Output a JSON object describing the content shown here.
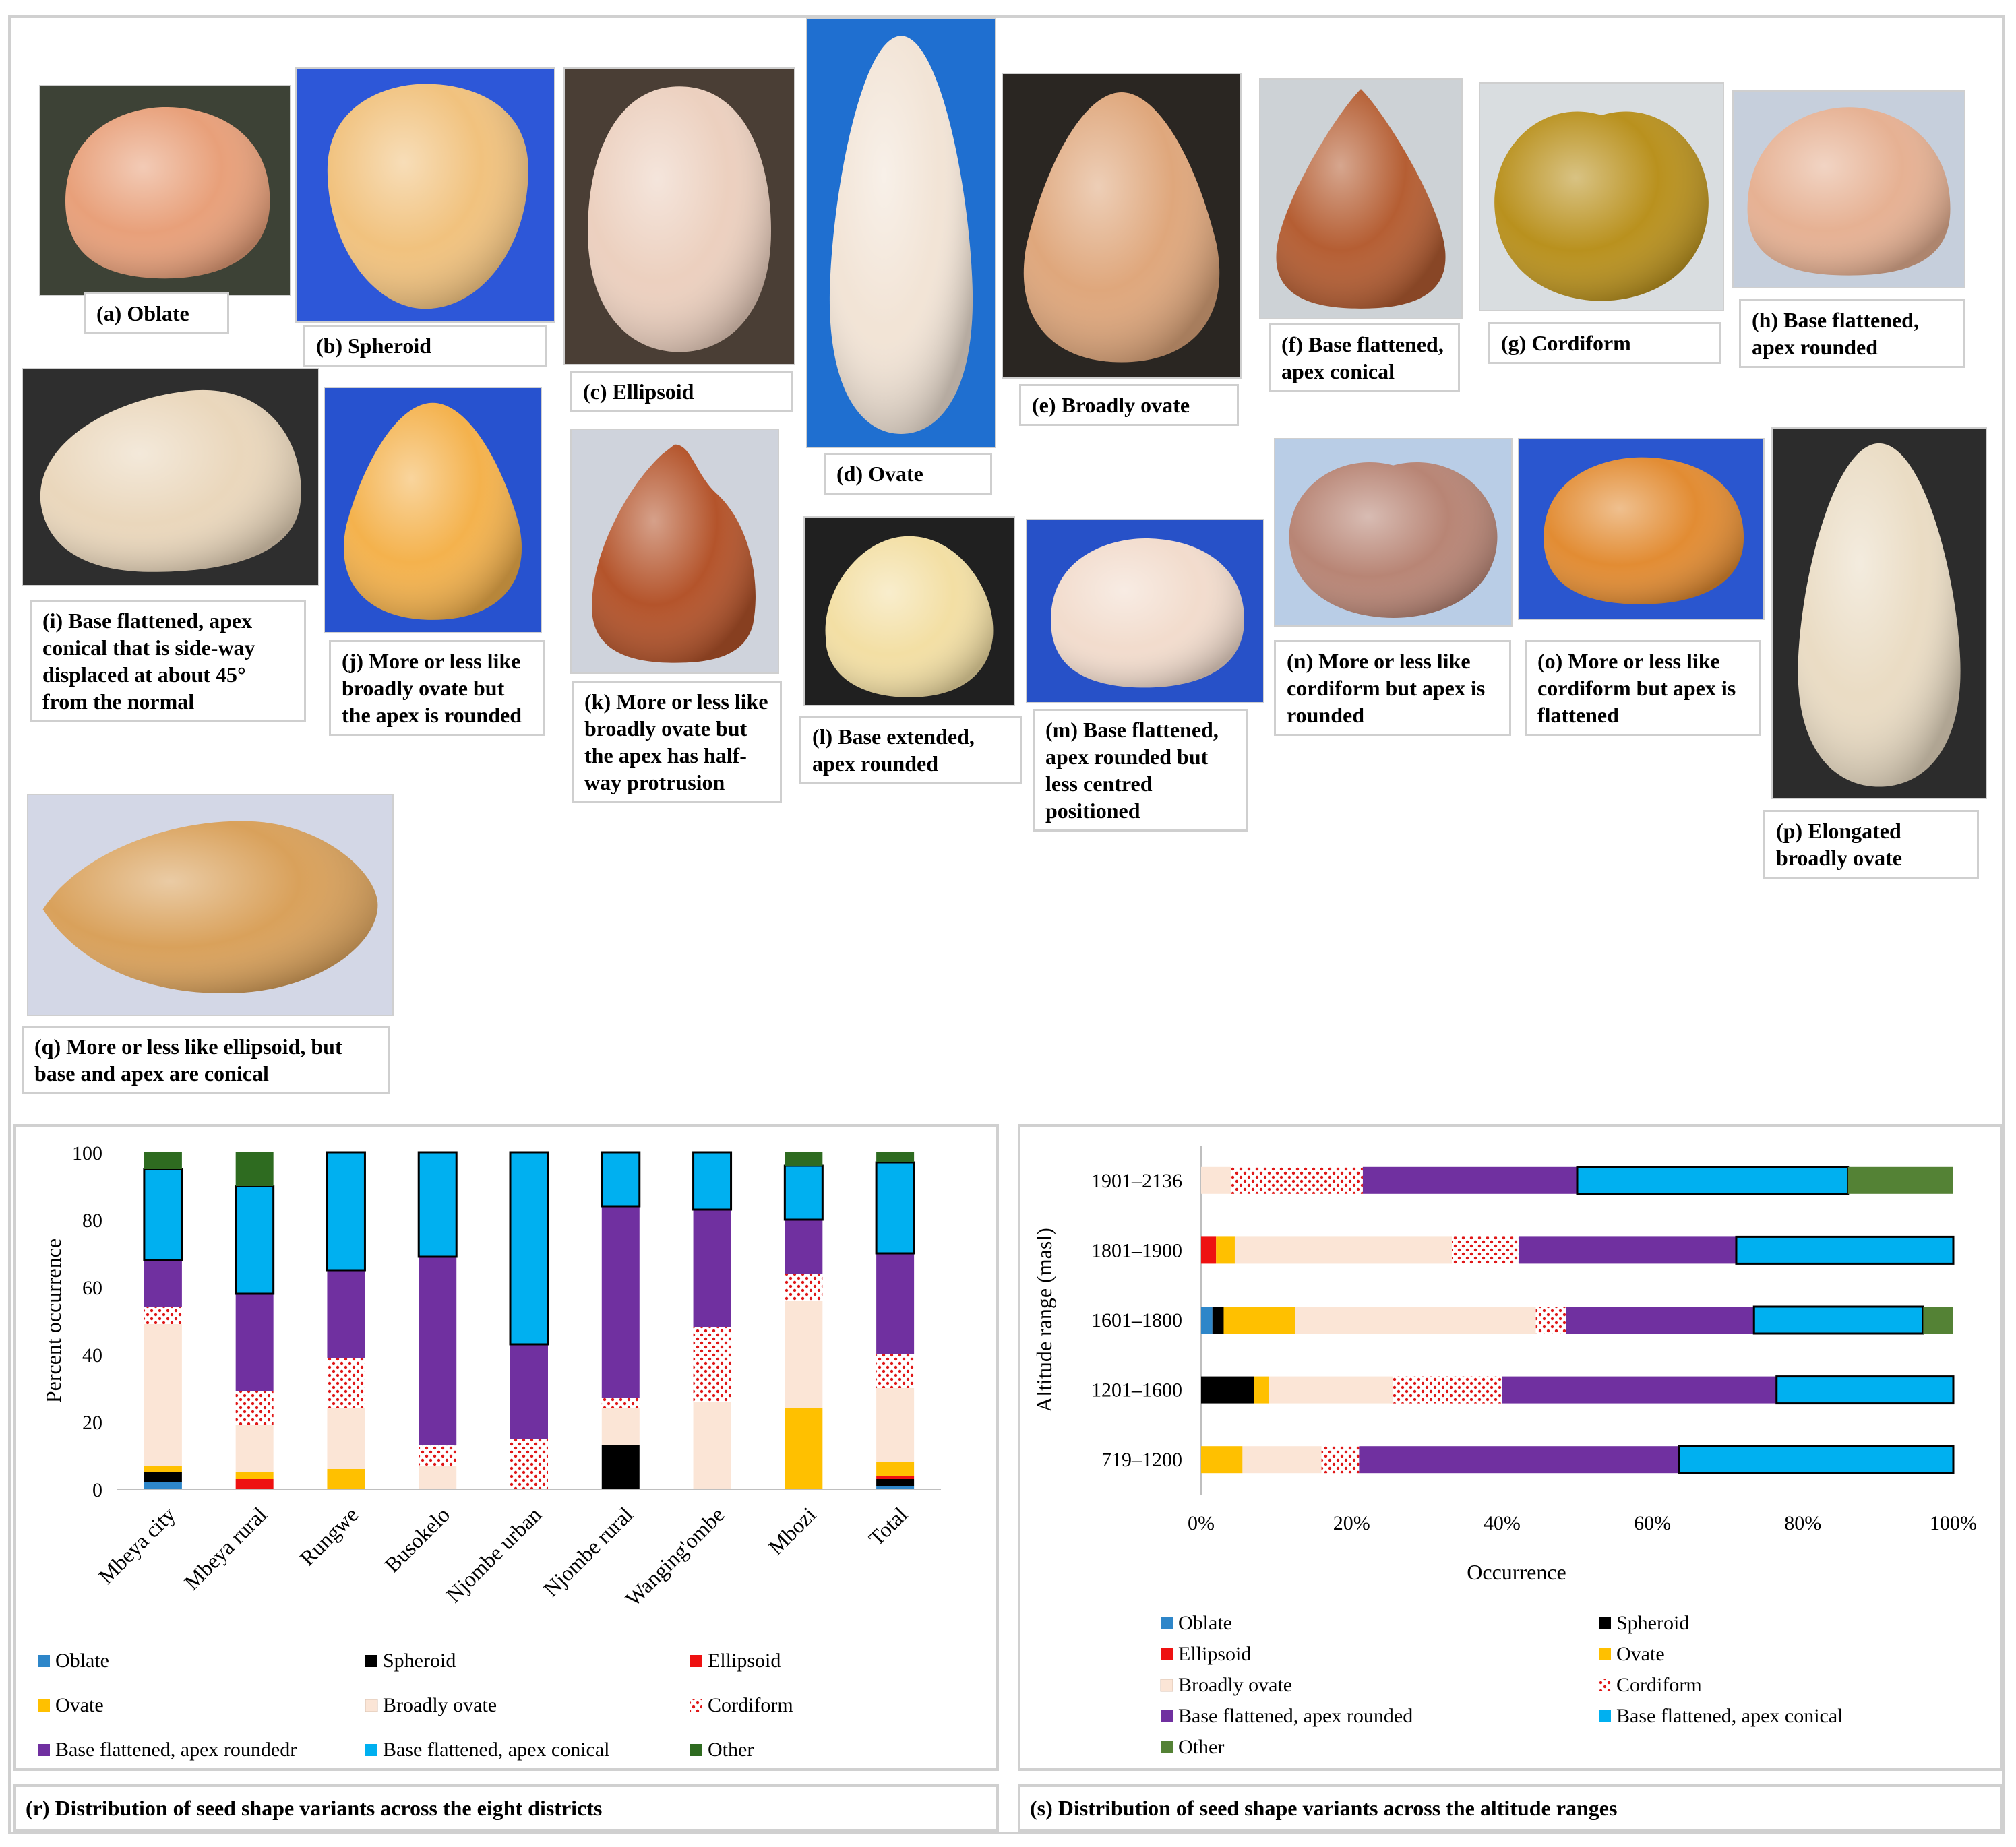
{
  "photos": [
    {
      "key": "a",
      "label": "(a) Oblate",
      "bg": "#3d4236",
      "seed": "#e8a07a",
      "shape": "oblate"
    },
    {
      "key": "b",
      "label": "(b) Spheroid",
      "bg": "#2d57d8",
      "seed": "#f1c27e",
      "shape": "spheroid"
    },
    {
      "key": "c",
      "label": "(c) Ellipsoid",
      "bg": "#4a3e35",
      "seed": "#ecd0bf",
      "shape": "ellipsoid"
    },
    {
      "key": "d",
      "label": "(d) Ovate",
      "bg": "#1f6fd0",
      "seed": "#f2e4d6",
      "shape": "ovate"
    },
    {
      "key": "e",
      "label": "(e) Broadly ovate",
      "bg": "#2a2622",
      "seed": "#dfa77c",
      "shape": "broadovate"
    },
    {
      "key": "f",
      "label": "(f) Base flattened, apex conical",
      "bg": "#cdd2d6",
      "seed": "#b55e33",
      "shape": "conical"
    },
    {
      "key": "g",
      "label": "(g) Cordiform",
      "bg": "#d9dde0",
      "seed": "#b9911e",
      "shape": "cordiform"
    },
    {
      "key": "h",
      "label": "(h) Base flattened, apex rounded",
      "bg": "#c6cfdc",
      "seed": "#e6b193",
      "shape": "flatround"
    },
    {
      "key": "i",
      "label": "(i) Base flattened, apex conical that is side-way displaced at about 45° from the normal",
      "bg": "#2e2e2e",
      "seed": "#ead7bc",
      "shape": "side"
    },
    {
      "key": "j",
      "label": "(j) More or less like broadly ovate but the apex is rounded",
      "bg": "#2752cf",
      "seed": "#f4b24d",
      "shape": "broadovate"
    },
    {
      "key": "k",
      "label": "(k) More or less like broadly ovate but the apex has half-way protrusion",
      "bg": "#cfd3dc",
      "seed": "#b4542b",
      "shape": "protrusion"
    },
    {
      "key": "l",
      "label": "(l) Base extended, apex rounded",
      "bg": "#202020",
      "seed": "#f3dfa4",
      "shape": "extended"
    },
    {
      "key": "m",
      "label": "(m) Base flattened, apex rounded but less centred positioned",
      "bg": "#2751c8",
      "seed": "#f2dccd",
      "shape": "oblate"
    },
    {
      "key": "n",
      "label": "(n) More or less like cordiform but apex is rounded",
      "bg": "#b9cde6",
      "seed": "#b88575",
      "shape": "cordiform"
    },
    {
      "key": "o",
      "label": "(o) More or less like cordiform but apex is flattened",
      "bg": "#2a56cf",
      "seed": "#e28c33",
      "shape": "oblate"
    },
    {
      "key": "p",
      "label": "(p) Elongated broadly ovate",
      "bg": "#2c2c2c",
      "seed": "#eadcc4",
      "shape": "ovate"
    },
    {
      "key": "q",
      "label": "(q) More or less like ellipsoid, but base and apex are conical",
      "bg": "#d3d7e6",
      "seed": "#d9a15b",
      "shape": "lemon"
    }
  ],
  "chart_data": [
    {
      "type": "bar",
      "stacked": true,
      "panel_caption": "(r)  Distribution of seed shape variants across the eight districts",
      "ylabel": "Percent occurrence",
      "ylim": [
        0,
        100
      ],
      "yticks": [
        "0",
        "20",
        "40",
        "60",
        "80",
        "100"
      ],
      "categories": [
        "Mbeya city",
        "Mbeya rural",
        "Rungwe",
        "Busokelo",
        "Njombe urban",
        "Njombe rural",
        "Wanging'ombe",
        "Mbozi",
        "Total"
      ],
      "series": [
        {
          "name": "Oblate",
          "color": "#2e86c9",
          "pattern": "solid",
          "values": [
            2,
            0,
            0,
            0,
            0,
            0,
            0,
            0,
            1
          ]
        },
        {
          "name": "Spheroid",
          "color": "#000000",
          "pattern": "solid",
          "values": [
            3,
            0,
            0,
            0,
            0,
            13,
            0,
            0,
            2
          ]
        },
        {
          "name": "Ellipsoid",
          "color": "#ee1111",
          "pattern": "solid",
          "values": [
            0,
            3,
            0,
            0,
            0,
            0,
            0,
            0,
            1
          ]
        },
        {
          "name": "Ovate",
          "color": "#ffc000",
          "pattern": "solid",
          "values": [
            2,
            2,
            6,
            0,
            0,
            0,
            0,
            24,
            4
          ]
        },
        {
          "name": "Broadly ovate",
          "color": "#fbe5d6",
          "pattern": "solid",
          "values": [
            42,
            14,
            18,
            7,
            0,
            11,
            26,
            32,
            22
          ]
        },
        {
          "name": "Cordiform",
          "color": "#ffffff",
          "pattern": "dots",
          "values": [
            5,
            10,
            15,
            6,
            15,
            3,
            22,
            8,
            10
          ]
        },
        {
          "name": "Base flattened, apex roundedr",
          "color": "#7030a0",
          "pattern": "solid",
          "values": [
            14,
            29,
            26,
            56,
            28,
            57,
            35,
            16,
            30
          ]
        },
        {
          "name": "Base flattened, apex conical",
          "color": "#00b0f0",
          "pattern": "solid",
          "values": [
            27,
            32,
            35,
            31,
            57,
            16,
            17,
            16,
            27
          ]
        },
        {
          "name": "Other",
          "color": "#2e6b20",
          "pattern": "solid",
          "values": [
            5,
            10,
            0,
            0,
            0,
            0,
            0,
            4,
            3
          ]
        }
      ],
      "legend_position": "bottom"
    },
    {
      "type": "bar",
      "orientation": "horizontal",
      "stacked": true,
      "panel_caption": "(s)  Distribution of seed shape variants across the altitude ranges",
      "xlabel": "Occurrence",
      "ylabel": "Altitude range (masl)",
      "xticks": [
        "0%",
        "20%",
        "40%",
        "60%",
        "80%",
        "100%"
      ],
      "categories": [
        "1901–2136",
        "1801–1900",
        "1601–1800",
        "1201–1600",
        "719–1200"
      ],
      "series": [
        {
          "name": "Oblate",
          "color": "#2e86c9",
          "pattern": "solid",
          "values": [
            0,
            0,
            1.5,
            0,
            0
          ]
        },
        {
          "name": "Spheroid",
          "color": "#000000",
          "pattern": "solid",
          "values": [
            0,
            0,
            1.5,
            7,
            0
          ]
        },
        {
          "name": "Ellipsoid",
          "color": "#ee1111",
          "pattern": "solid",
          "values": [
            0,
            2,
            0,
            0,
            0
          ]
        },
        {
          "name": "Ovate",
          "color": "#ffc000",
          "pattern": "solid",
          "values": [
            0,
            2.5,
            9.5,
            2,
            5.5
          ]
        },
        {
          "name": "Broadly ovate",
          "color": "#fbe5d6",
          "pattern": "solid",
          "values": [
            4,
            29,
            32,
            16.5,
            10.5
          ]
        },
        {
          "name": "Cordiform",
          "color": "#ffffff",
          "pattern": "dots",
          "values": [
            17.5,
            9,
            4,
            14.5,
            5
          ]
        },
        {
          "name": "Base flattened, apex rounded",
          "color": "#7030a0",
          "pattern": "solid",
          "values": [
            28.5,
            29,
            25,
            36.5,
            42.5
          ]
        },
        {
          "name": "Base flattened, apex conical",
          "color": "#00b0f0",
          "pattern": "solid",
          "values": [
            36,
            29,
            22.5,
            23.5,
            36.5
          ]
        },
        {
          "name": "Other",
          "color": "#548235",
          "pattern": "solid",
          "values": [
            14,
            0,
            4,
            0,
            0
          ]
        }
      ],
      "legend_position": "bottom"
    }
  ]
}
